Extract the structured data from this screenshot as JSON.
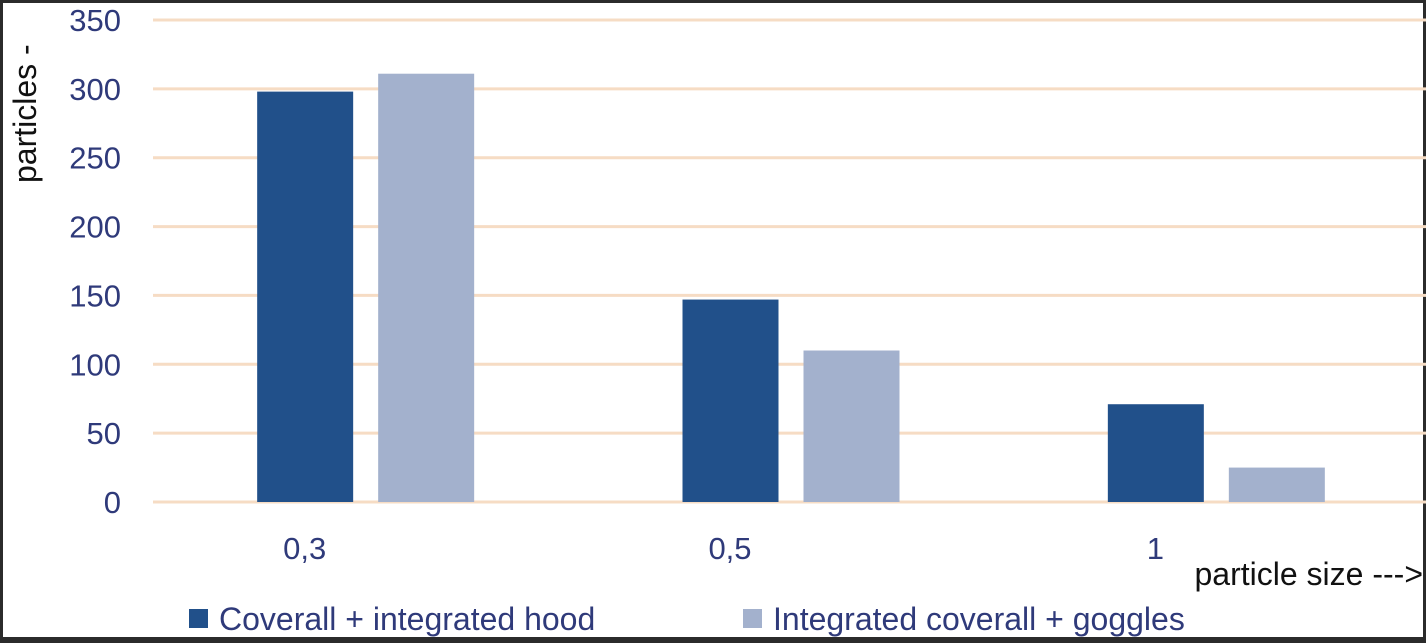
{
  "chart_data": {
    "type": "bar",
    "title": "",
    "xlabel": "particle size --->",
    "ylabel": "particles -",
    "categories": [
      "0,3",
      "0,5",
      "1"
    ],
    "series": [
      {
        "name": "Coverall + integrated hood",
        "values": [
          298,
          147,
          71
        ],
        "color": "#21508a"
      },
      {
        "name": "Integrated coverall + goggles",
        "values": [
          311,
          110,
          25
        ],
        "color": "#a3b1cd"
      }
    ],
    "ylim": [
      0,
      350
    ],
    "yticks": [
      0,
      50,
      100,
      150,
      200,
      250,
      300,
      350
    ],
    "grid": true,
    "grid_color": "#f6dcc4",
    "legend_position": "bottom-left"
  }
}
